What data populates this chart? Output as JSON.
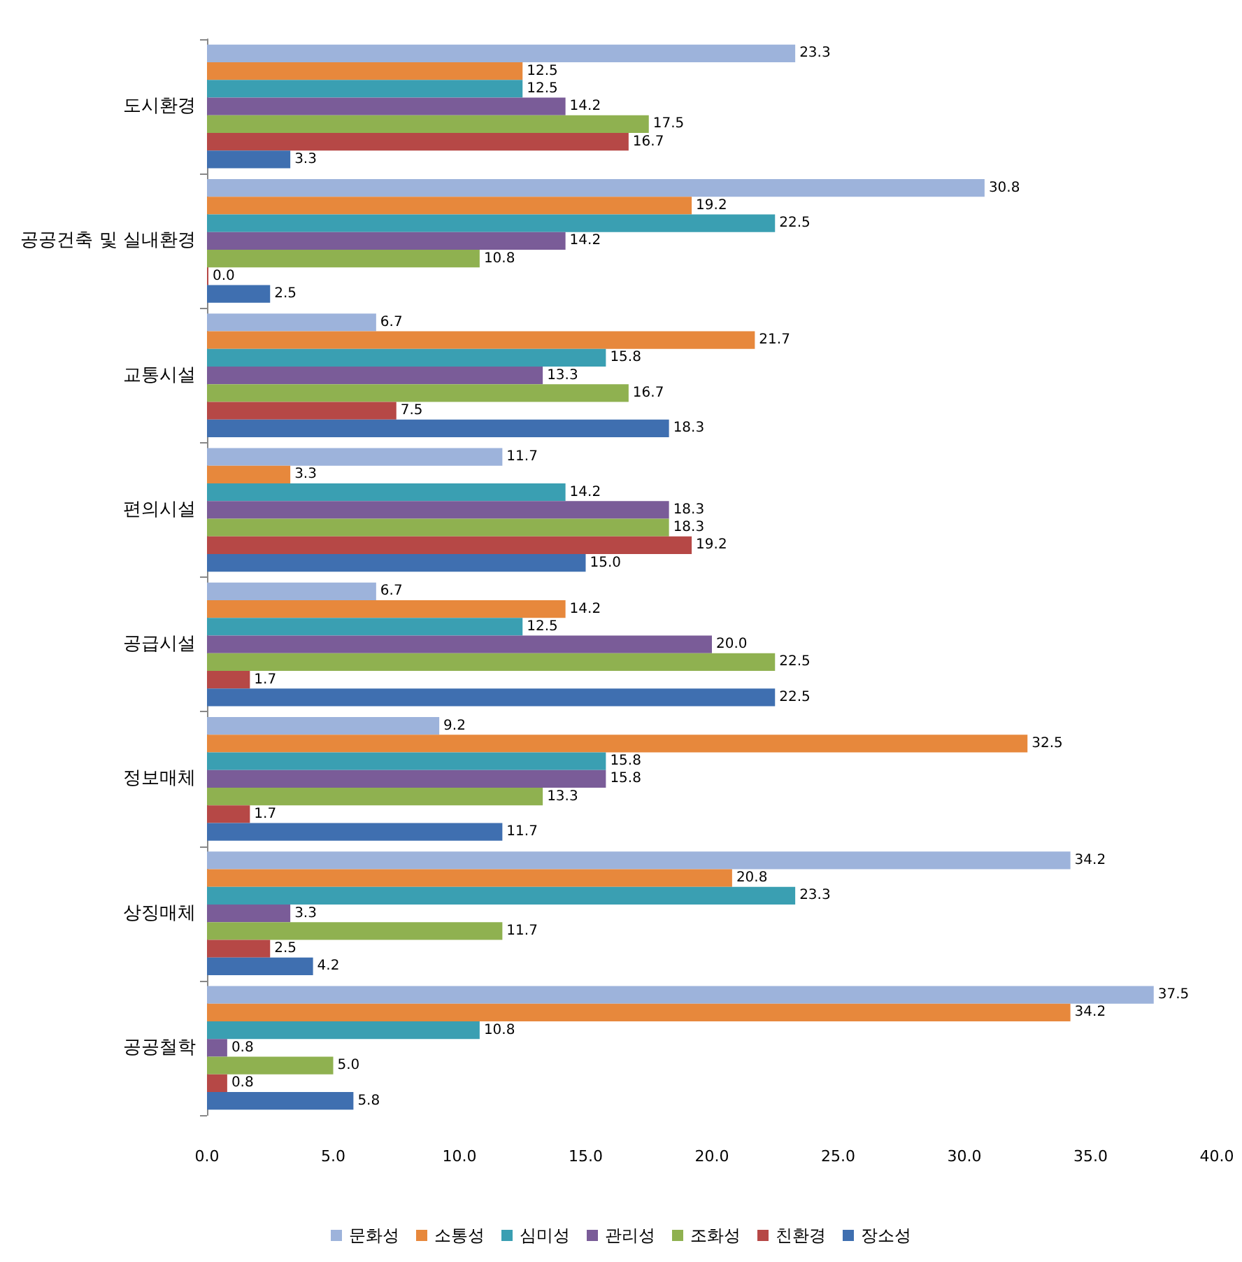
{
  "chart_data": {
    "type": "bar",
    "orientation": "horizontal",
    "categories": [
      "도시환경",
      "공공건축 및 실내환경",
      "교통시설",
      "편의시설",
      "공급시설",
      "정보매체",
      "상징매체",
      "공공철학"
    ],
    "series": [
      {
        "name": "문화성",
        "color": "#9db3db",
        "values": [
          23.3,
          30.8,
          6.7,
          11.7,
          6.7,
          9.2,
          34.2,
          37.5
        ],
        "value_labels": [
          "23.3",
          "30.8",
          "6.7",
          "11.7",
          "6.7",
          "9.2",
          "34.2",
          "37.5"
        ]
      },
      {
        "name": "소통성",
        "color": "#e7883c",
        "values": [
          12.5,
          19.2,
          21.7,
          3.3,
          14.2,
          32.5,
          20.8,
          34.2
        ],
        "value_labels": [
          "12.5",
          "19.2",
          "21.7",
          "3.3",
          "14.2",
          "32.5",
          "20.8",
          "34.2"
        ]
      },
      {
        "name": "심미성",
        "color": "#3a9fb2",
        "values": [
          12.5,
          22.5,
          15.8,
          14.2,
          12.5,
          15.8,
          23.3,
          10.8
        ],
        "value_labels": [
          "12.5",
          "22.5",
          "15.8",
          "14.2",
          "12.5",
          "15.8",
          "23.3",
          "10.8"
        ]
      },
      {
        "name": "관리성",
        "color": "#7a5c98",
        "values": [
          14.2,
          14.2,
          13.3,
          18.3,
          20.0,
          15.8,
          3.3,
          0.8
        ],
        "value_labels": [
          "14.2",
          "14.2",
          "13.3",
          "18.3",
          "20.0",
          "15.8",
          "3.3",
          "0.8"
        ]
      },
      {
        "name": "조화성",
        "color": "#8fb150",
        "values": [
          17.5,
          10.8,
          16.7,
          18.3,
          22.5,
          13.3,
          11.7,
          5.0
        ],
        "value_labels": [
          "17.5",
          "10.8",
          "16.7",
          "18.3",
          "22.5",
          "13.3",
          "11.7",
          "5.0"
        ]
      },
      {
        "name": "친환경",
        "color": "#b64846",
        "values": [
          16.7,
          0.0,
          7.5,
          19.2,
          1.7,
          1.7,
          2.5,
          0.8
        ],
        "value_labels": [
          "16.7",
          "0.0",
          "7.5",
          "19.2",
          "1.7",
          "1.7",
          "2.5",
          "0.8"
        ]
      },
      {
        "name": "장소성",
        "color": "#3f6fb0",
        "values": [
          3.3,
          2.5,
          18.3,
          15.0,
          22.5,
          11.7,
          4.2,
          5.8
        ],
        "value_labels": [
          "3.3",
          "2.5",
          "18.3",
          "15.0",
          "22.5",
          "11.7",
          "4.2",
          "5.8"
        ]
      }
    ],
    "xlim": [
      0,
      40
    ],
    "xticks": [
      {
        "value": 0,
        "label": "0.0"
      },
      {
        "value": 5,
        "label": "5.0"
      },
      {
        "value": 10,
        "label": "10.0"
      },
      {
        "value": 15,
        "label": "15.0"
      },
      {
        "value": 20,
        "label": "20.0"
      },
      {
        "value": 25,
        "label": "25.0"
      },
      {
        "value": 30,
        "label": "30.0"
      },
      {
        "value": 35,
        "label": "35.0"
      },
      {
        "value": 40,
        "label": "40.0"
      }
    ],
    "grid": false,
    "legend": "bottom"
  }
}
